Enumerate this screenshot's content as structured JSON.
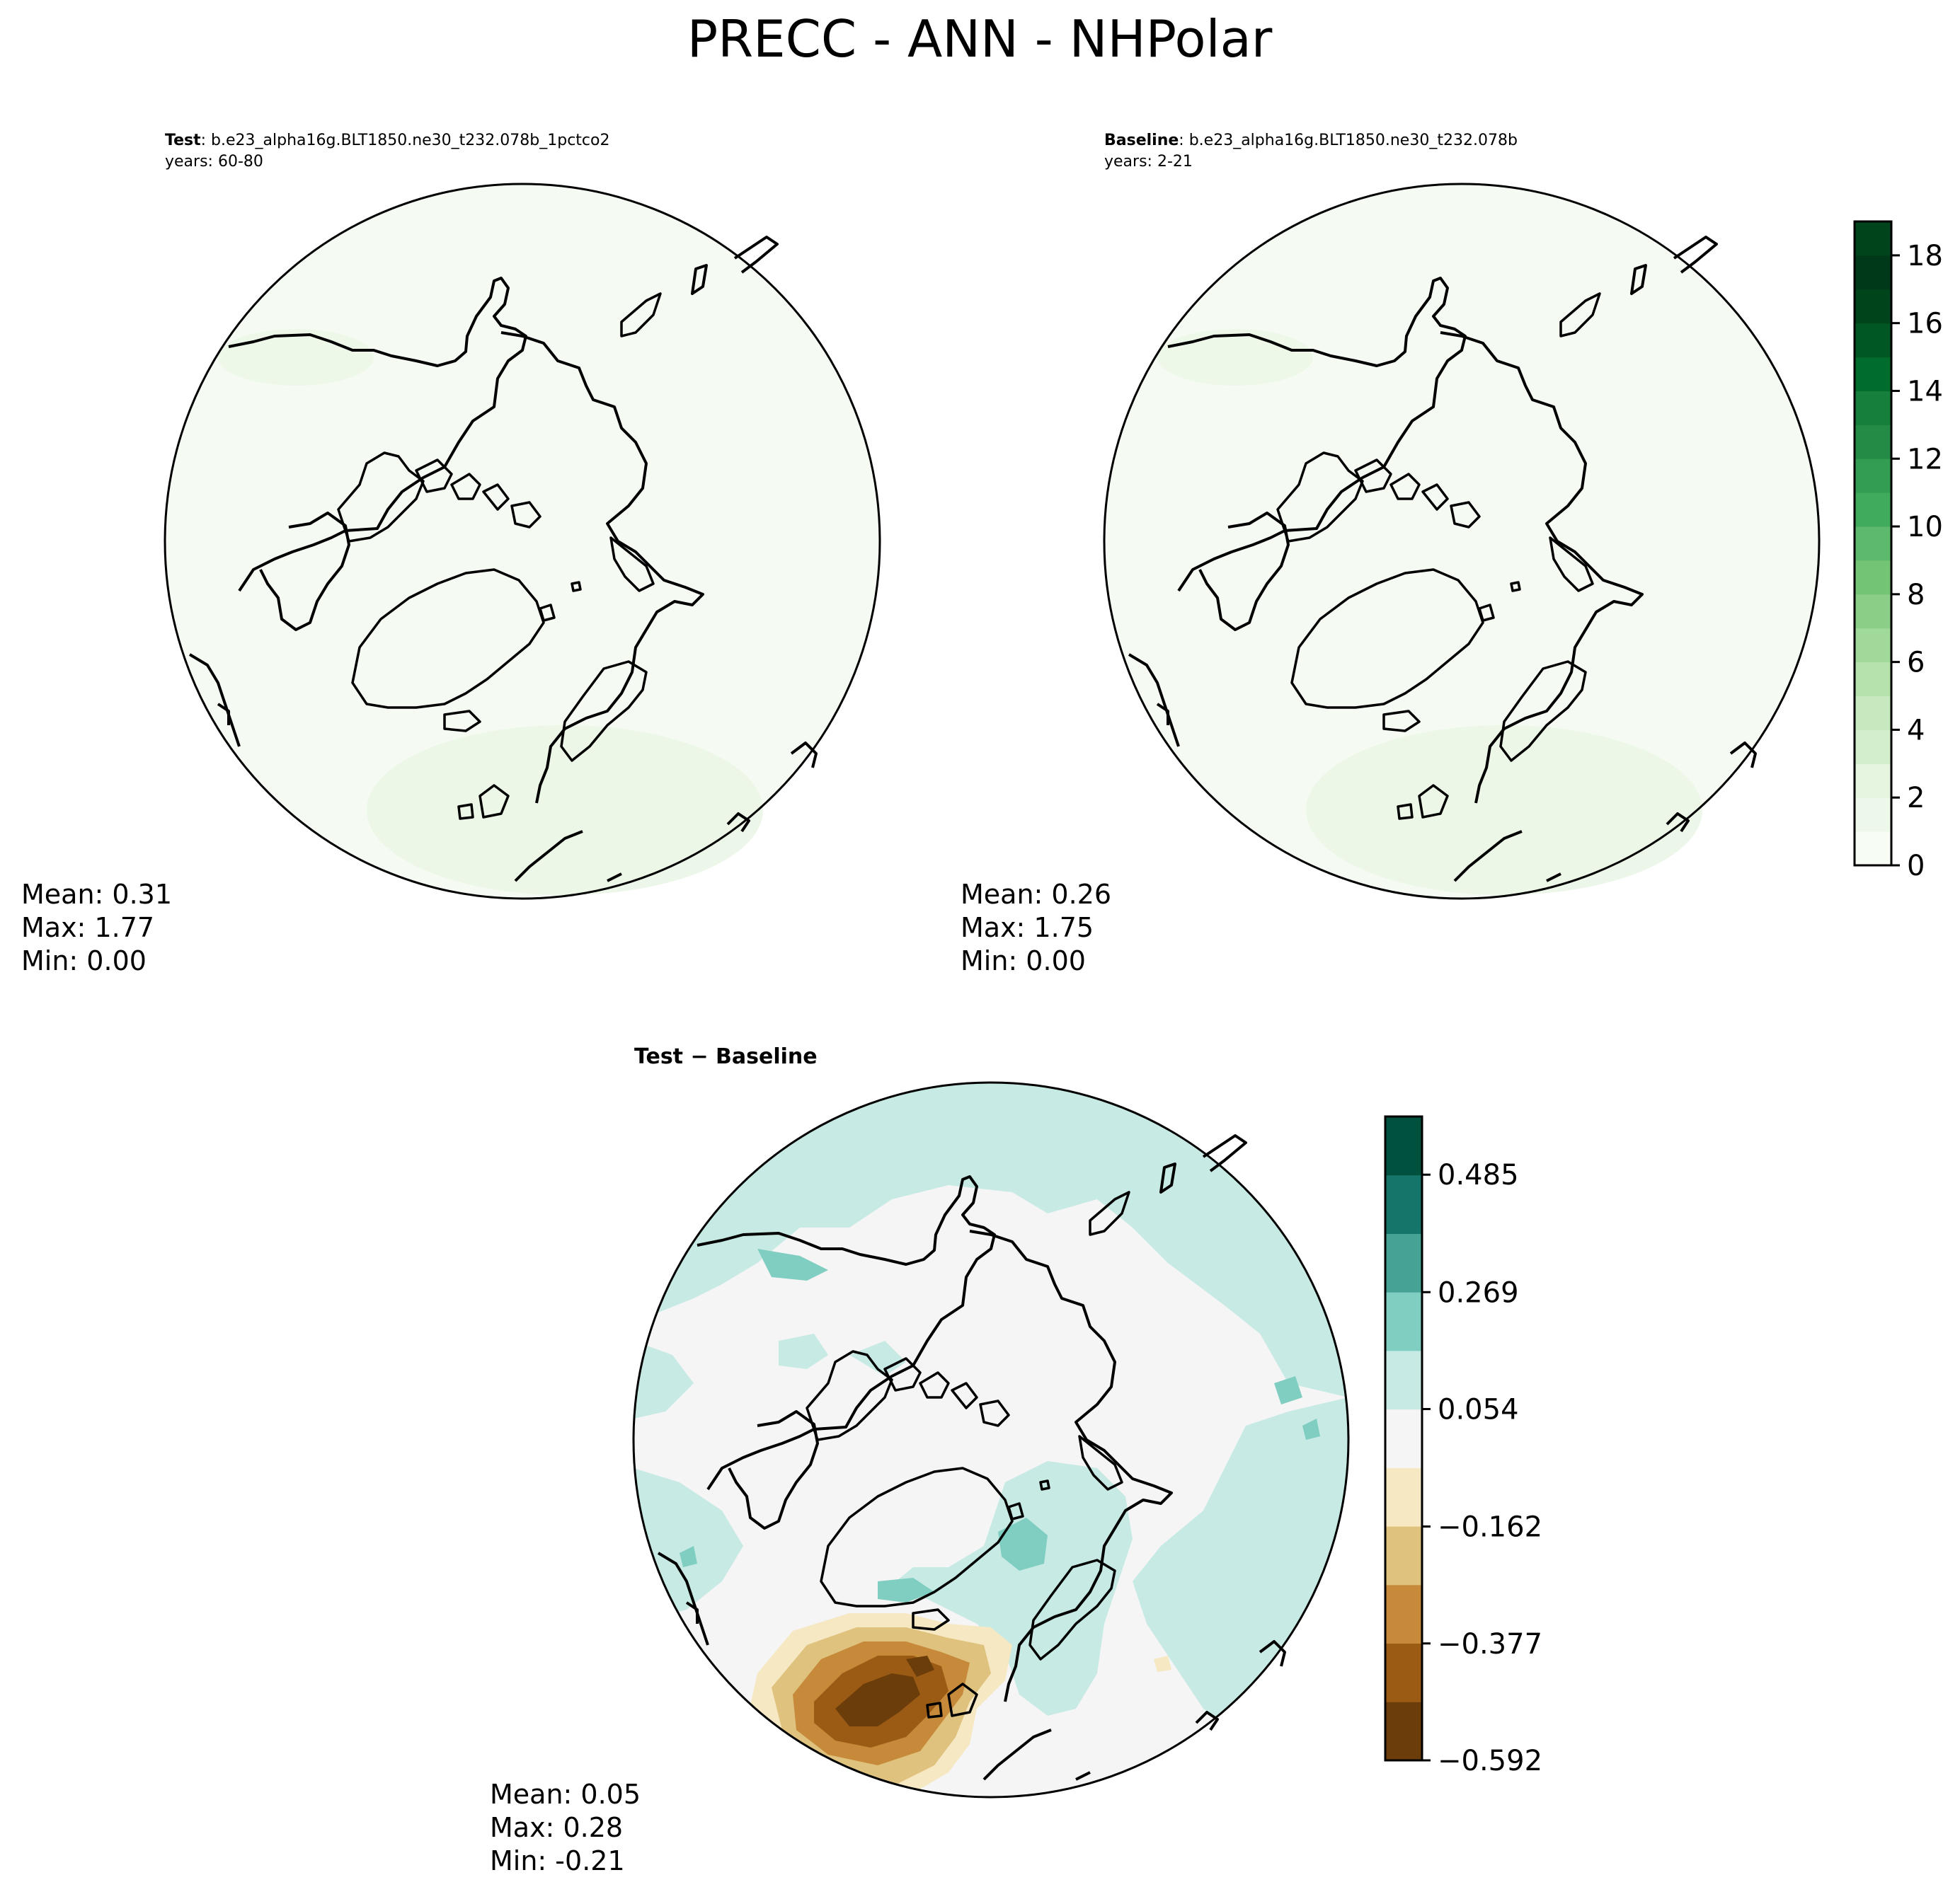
{
  "figure": {
    "title": "PRECC - ANN - NHPolar"
  },
  "panels": [
    {
      "id": "test",
      "label_bold": "Test",
      "label_rest": ": b.e23_alpha16g.BLT1850.ne30_t232.078b_1pctco2",
      "years": "years: 60-80",
      "stats": {
        "mean": "Mean:  0.31",
        "max": "Max:  1.77",
        "min": "Min:  0.00"
      }
    },
    {
      "id": "baseline",
      "label_bold": "Baseline",
      "label_rest": ": b.e23_alpha16g.BLT1850.ne30_t232.078b",
      "years": "years: 2-21",
      "stats": {
        "mean": "Mean:  0.26",
        "max": "Max:  1.75",
        "min": "Min:  0.00"
      }
    },
    {
      "id": "diff",
      "label_bold": "Test − Baseline",
      "stats": {
        "mean": "Mean:  0.05",
        "max": "Max:  0.28",
        "min": "Min: -0.21"
      }
    }
  ],
  "colorbars": {
    "greens": {
      "ticks": [
        "0",
        "2",
        "4",
        "6",
        "8",
        "10",
        "12",
        "14",
        "16",
        "18"
      ],
      "tick_values": [
        0,
        2,
        4,
        6,
        8,
        10,
        12,
        14,
        16,
        18
      ],
      "range": [
        0,
        19
      ],
      "colors": [
        "#f7fcf5",
        "#eef8ea",
        "#e5f5e0",
        "#d3eecd",
        "#c7e9c0",
        "#b6e2ae",
        "#a1d99b",
        "#8ace88",
        "#74c476",
        "#5db96b",
        "#41ab5d",
        "#339e53",
        "#238b45",
        "#157f3b",
        "#006d2c",
        "#005723",
        "#00441b",
        "#00381a",
        "#00441b"
      ]
    },
    "brbg": {
      "ticks": [
        "0.485",
        "0.269",
        "0.054",
        "−0.162",
        "−0.377",
        "−0.592"
      ],
      "tick_values": [
        0.485,
        0.269,
        0.054,
        -0.162,
        -0.377,
        -0.592
      ],
      "range": [
        -0.592,
        0.592
      ],
      "colors": [
        "#6b3d0a",
        "#9b5b15",
        "#c68a3a",
        "#dfc27d",
        "#f6e8c3",
        "#f5f5f5",
        "#c7eae5",
        "#80cdc1",
        "#45a294",
        "#16756b",
        "#01513f"
      ]
    }
  },
  "map_colors": {
    "field_light": "#f5fbf2",
    "field_tint": "#eaf6e5",
    "diff_neutral": "#f5f5f5",
    "diff_teal_light": "#c7eae5",
    "diff_teal": "#80cdc1",
    "diff_brown_light": "#f6e8c3",
    "diff_brown": "#dfc27d",
    "diff_brown_mid": "#c68a3a",
    "diff_brown_dark": "#9b5b15",
    "diff_brown_darkest": "#6b3d0a"
  }
}
